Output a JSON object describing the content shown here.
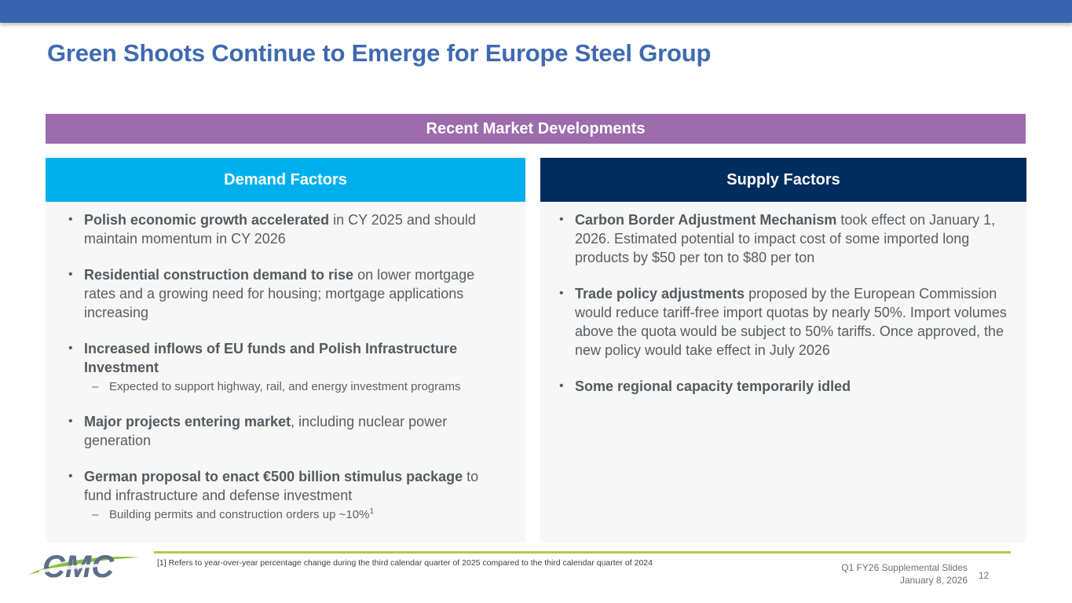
{
  "slide": {
    "title": "Green Shoots Continue to Emerge for Europe Steel Group",
    "banner": "Recent Market Developments"
  },
  "demand": {
    "header": "Demand Factors",
    "bullets": [
      {
        "bold": "Polish economic growth accelerated",
        "rest": " in CY 2025 and should maintain momentum in CY 2026"
      },
      {
        "bold": "Residential construction demand to rise",
        "rest": " on lower mortgage rates and a growing need for housing; mortgage applications increasing"
      },
      {
        "bold": "Increased inflows of EU funds and Polish Infrastructure Investment",
        "rest": "",
        "sub": "Expected to support highway, rail, and energy investment programs"
      },
      {
        "bold": "Major projects entering market",
        "rest": ", including nuclear power generation"
      },
      {
        "bold": "German proposal to enact €500 billion stimulus package",
        "rest": " to fund infrastructure and defense investment",
        "sub": "Building permits and construction orders up ~10%",
        "sub_sup": "1"
      }
    ]
  },
  "supply": {
    "header": "Supply Factors",
    "bullets": [
      {
        "bold": "Carbon Border Adjustment Mechanism",
        "rest": " took effect on January 1, 2026.  Estimated potential to impact cost of some imported long products by $50 per ton to $80 per ton"
      },
      {
        "bold": "Trade policy adjustments",
        "rest": " proposed by the European Commission would reduce tariff-free import quotas by nearly 50%.  Import volumes above the quota would be subject to 50% tariffs.  Once approved, the new policy would take effect in July 2026"
      },
      {
        "bold": "Some regional capacity temporarily idled",
        "rest": ""
      }
    ]
  },
  "footer": {
    "footnote": "[1] Refers to year-over-year percentage change during the third calendar quarter of 2025 compared to the third calendar quarter of 2024",
    "deck": "Q1 FY26 Supplemental Slides",
    "date": "January 8, 2026",
    "page": "12",
    "logo_text": "CMC"
  },
  "symbols": {
    "bullet": "•",
    "dash": "–"
  },
  "colors": {
    "top_bar": "#3764ae",
    "title": "#3f6ab1",
    "banner": "#9c6cad",
    "demand": "#00b0ec",
    "supply": "#002d5e",
    "accent_line": "#b3c94a"
  }
}
